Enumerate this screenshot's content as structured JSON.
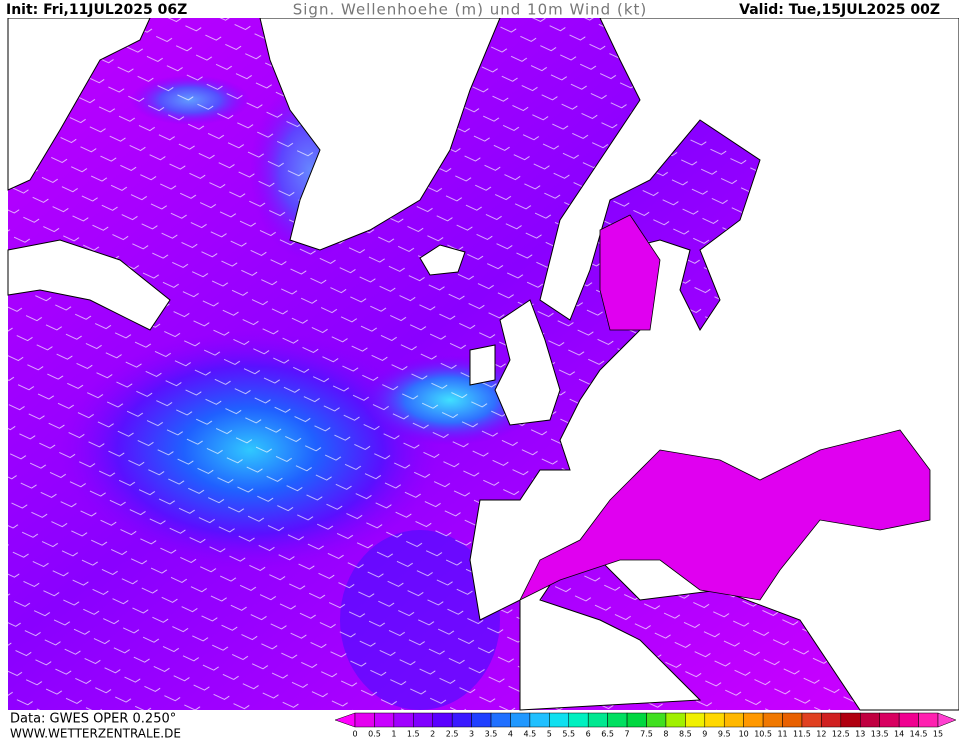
{
  "header": {
    "init": "Init: Fri,11JUL2025 06Z",
    "title": "Sign. Wellenhoehe (m) und 10m Wind (kt)",
    "valid": "Valid: Tue,15JUL2025 00Z"
  },
  "footer": {
    "data_source": "Data: GWES OPER 0.250°",
    "website": "WWW.WETTERZENTRALE.DE"
  },
  "colorbar": {
    "labels": [
      0,
      0.5,
      1,
      1.5,
      2,
      2.5,
      3,
      3.5,
      4,
      4.5,
      5,
      5.5,
      6,
      6.5,
      7,
      7.5,
      8,
      8.5,
      9,
      9.5,
      10,
      10.5,
      11,
      11.5,
      12,
      12.5,
      13,
      13.5,
      14,
      14.5,
      15
    ],
    "colors": [
      "#e400f0",
      "#c800ff",
      "#a000ff",
      "#8000ff",
      "#5a00ff",
      "#3a1aff",
      "#2040ff",
      "#2070ff",
      "#2098ff",
      "#20c0ff",
      "#10e0f0",
      "#00f0c0",
      "#00e890",
      "#00e060",
      "#00d840",
      "#40e020",
      "#a0f000",
      "#f0f000",
      "#ffd800",
      "#ffb800",
      "#ff9800",
      "#f07800",
      "#e86000",
      "#e04020",
      "#d02020",
      "#b00010",
      "#c00040",
      "#d80060",
      "#f00090",
      "#ff20b0"
    ],
    "under_color": "#ff00ff",
    "over_color": "#ff40d0"
  }
}
